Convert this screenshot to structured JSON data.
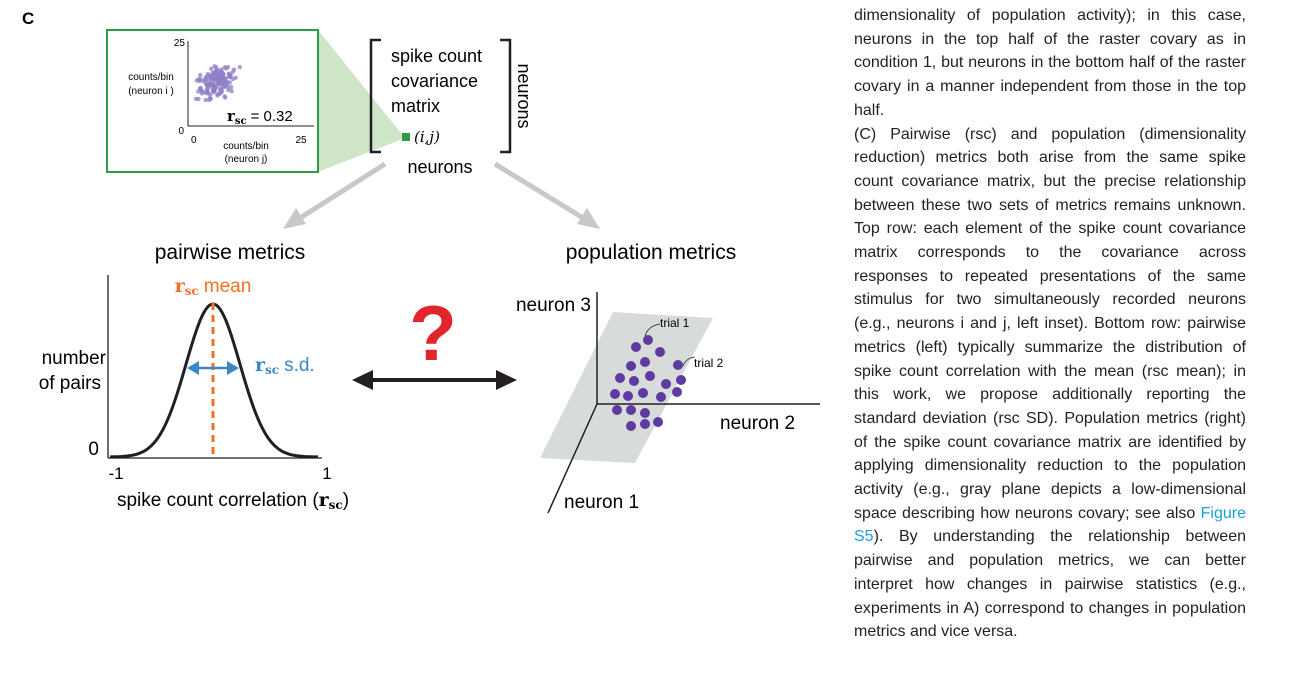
{
  "panel_label": "C",
  "inset": {
    "y_max": "25",
    "origin": "0",
    "x_origin": "0",
    "x_max": "25",
    "ylabel_line1": "counts/bin",
    "ylabel_line2": "(neuron i )",
    "xlabel_line1": "counts/bin",
    "xlabel_line2": "(neuron j)",
    "rsc_symbol": "r",
    "rsc_sub": "sc",
    "rsc_value": "= 0.32"
  },
  "matrix": {
    "line1": "spike count",
    "line2": "covariance",
    "line3": "matrix",
    "element": "(i,j)",
    "bottom_label": "neurons",
    "side_label": "neurons"
  },
  "pairwise": {
    "title": "pairwise metrics",
    "mean_symbol": "r",
    "mean_sub": "sc",
    "mean_word": "mean",
    "sd_symbol": "r",
    "sd_sub": "sc",
    "sd_word": "s.d.",
    "ylabel_line1": "number",
    "ylabel_line2": "of pairs",
    "y_zero": "0",
    "x_min": "-1",
    "x_max": "1",
    "xlabel_text": "spike count correlation (",
    "xlabel_symbol": "r",
    "xlabel_sub": "sc",
    "xlabel_close": ")"
  },
  "question_mark": "?",
  "population": {
    "title": "population metrics",
    "axis_neuron3": "neuron 3",
    "axis_neuron2": "neuron 2",
    "axis_neuron1": "neuron 1",
    "trial1": "trial 1",
    "trial2": "trial 2"
  },
  "colors": {
    "inset_border": "#2e9b47",
    "scatter": "#8f7fc7",
    "mean": "#f37021",
    "sd": "#3a87c8",
    "dots": "#5e3ba0",
    "plane": "#d7dcdb",
    "arrow_gray": "#c8c8c8",
    "link": "#1ba0dc",
    "question": "#e0262c",
    "zoom": "#cfe5c8"
  },
  "caption": {
    "p1": "dimensionality of population activity); in this case, neurons in the top half of the raster covary as in condition 1, but neurons in the bottom half of the raster covary in a manner independent from those in the top half.",
    "p2_before_link": "(C) Pairwise (rsc) and population (dimensionality reduction) metrics both arise from the same spike count covariance matrix, but the precise relationship between these two sets of metrics remains unknown. Top row: each element of the spike count covariance matrix corresponds to the covariance across responses to repeated presentations of the same stimulus for two simultaneously recorded neurons (e.g., neurons i and j, left inset). Bottom row: pairwise metrics (left) typically summarize the distribution of spike count correlation with the mean (rsc mean); in this work, we propose additionally reporting the standard deviation (rsc SD). Population metrics (right) of the spike count covariance matrix are identified by applying dimensionality reduction to the population activity (e.g., gray plane depicts a low-dimensional space describing how neurons covary; see also ",
    "link_text": "Figure S5",
    "p2_after_link": "). By understanding the relationship between pairwise and population metrics, we can better interpret how changes in pairwise statistics (e.g., experiments in A) correspond to changes in population metrics and vice versa."
  }
}
